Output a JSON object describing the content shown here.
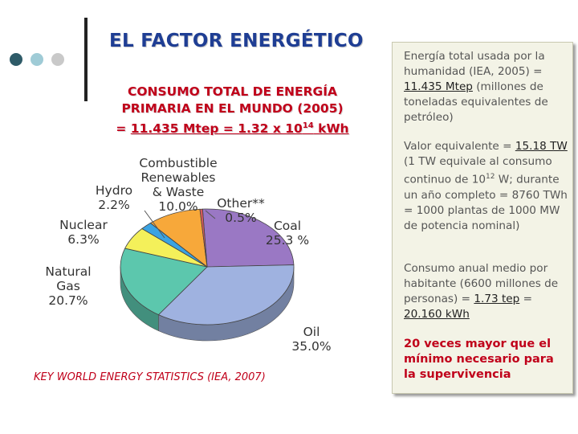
{
  "slide": {
    "title": "EL FACTOR ENERGÉTICO",
    "subtitle_line1": "CONSUMO TOTAL DE ENERGÍA",
    "subtitle_line2": "PRIMARIA EN EL MUNDO (2005)",
    "subtitle_line3_prefix": "= ",
    "subtitle_line3_a": "11.435 Mtep",
    "subtitle_line3_b": " = 1.32 x 10",
    "subtitle_line3_exp": "14",
    "subtitle_line3_c": " kWh",
    "source": "KEY WORLD ENERGY STATISTICS (IEA, 2007)",
    "bullet_colors": [
      "#2e5b68",
      "#9fcbd6",
      "#c9c9c9"
    ]
  },
  "panel": {
    "p1_a": "Energía total usada por la humanidad (IEA, 2005) = ",
    "p1_b": "11.435 Mtep",
    "p1_c": " (millones de toneladas equivalentes de petróleo)",
    "p2_a": "Valor equivalente = ",
    "p2_b": "15.18 TW",
    "p2_c": " (1 TW equivale al consumo continuo de 10",
    "p2_exp": "12",
    "p2_d": " W; durante un año completo  = 8760 TWh = 1000 plantas de 1000 MW de potencia nominal)",
    "p3_a": "Consumo anual medio por habitante (6600 millones de personas) = ",
    "p3_b": "1.73 tep",
    "p3_c": " = ",
    "p3_d": "20.160 kWh",
    "p4": "20 veces mayor que el mínimo necesario para la supervivencia"
  },
  "chart_data": {
    "type": "pie",
    "title": "",
    "slices": [
      {
        "label_lines": [
          "Coal",
          "25.3 %"
        ],
        "value": 25.3,
        "color": "#9a78c4"
      },
      {
        "label_lines": [
          "Oil",
          "35.0%"
        ],
        "value": 35.0,
        "color": "#9fb2e0"
      },
      {
        "label_lines": [
          "Natural",
          "Gas",
          "20.7%"
        ],
        "value": 20.7,
        "color": "#5cc7ad"
      },
      {
        "label_lines": [
          "Nuclear",
          "6.3%"
        ],
        "value": 6.3,
        "color": "#f4f05a"
      },
      {
        "label_lines": [
          "Hydro",
          "2.2%"
        ],
        "value": 2.2,
        "color": "#3aa3e2"
      },
      {
        "label_lines": [
          "Combustible",
          "Renewables",
          "& Waste",
          "10.0%"
        ],
        "value": 10.0,
        "color": "#f7a83a"
      },
      {
        "label_lines": [
          "Other**",
          "0.5%"
        ],
        "value": 0.5,
        "color": "#d85a5a"
      }
    ]
  }
}
